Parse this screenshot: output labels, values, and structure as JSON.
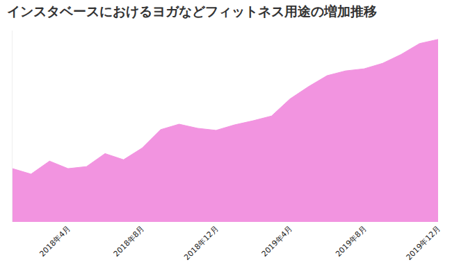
{
  "chart_data": {
    "type": "area",
    "title": "インスタベースにおけるヨガなどフィットネス用途の増加推移",
    "categories": [
      null,
      null,
      null,
      "2018年4月",
      null,
      null,
      null,
      "2018年8月",
      null,
      null,
      null,
      "2018年12月",
      null,
      null,
      null,
      "2019年4月",
      null,
      null,
      null,
      "2019年8月",
      null,
      null,
      null,
      "2019年12月"
    ],
    "values": [
      78,
      70,
      89,
      78,
      81,
      100,
      91,
      108,
      135,
      143,
      137,
      134,
      142,
      148,
      155,
      180,
      198,
      214,
      221,
      224,
      232,
      245,
      261,
      267
    ],
    "color": "#f294e0",
    "ylim": [
      0,
      280
    ],
    "grid": false,
    "tick_labels": "x"
  }
}
